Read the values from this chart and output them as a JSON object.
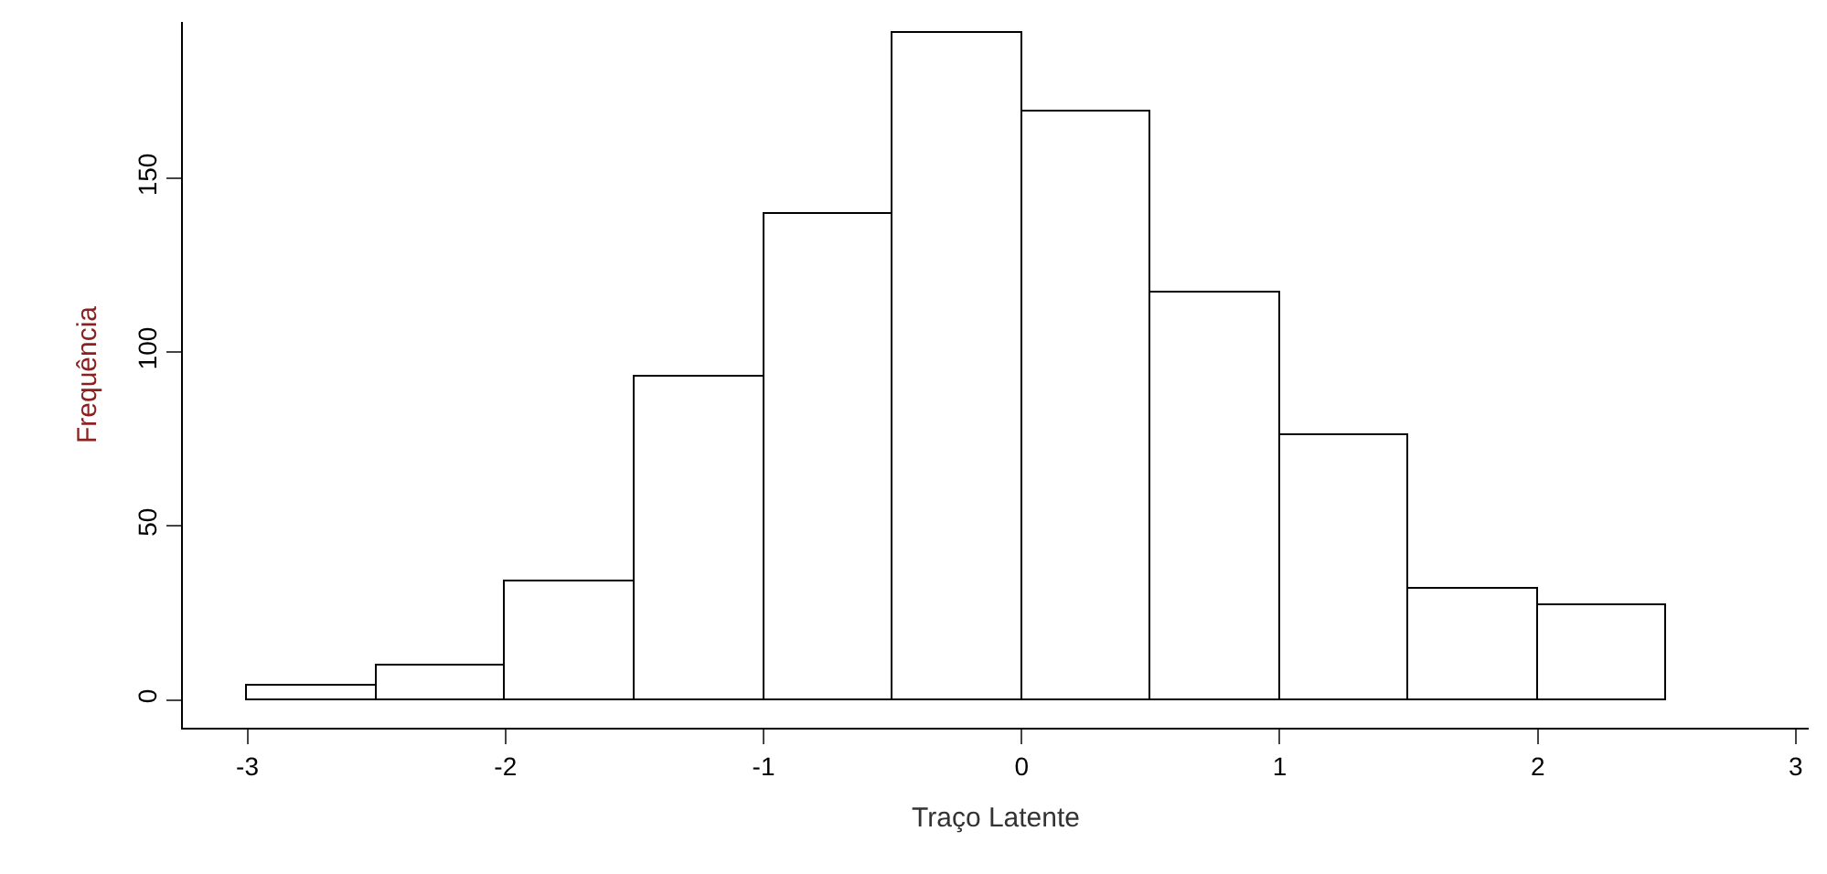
{
  "chart_data": {
    "type": "histogram",
    "xlabel": "Traço Latente",
    "ylabel": "Frequência",
    "bins": [
      -3,
      -2.5,
      -2,
      -1.5,
      -1,
      -0.5,
      0,
      0.5,
      1,
      1.5,
      2,
      2.5
    ],
    "values": [
      4,
      10,
      34,
      93,
      140,
      192,
      169,
      117,
      76,
      32,
      27
    ],
    "color": "#ffffff",
    "xlim": [
      -3.25,
      3.05
    ],
    "ylim": [
      -8,
      195
    ],
    "xticks": [
      -3,
      -2,
      -1,
      0,
      1,
      2,
      3
    ],
    "yticks": [
      0,
      50,
      100,
      150
    ]
  }
}
